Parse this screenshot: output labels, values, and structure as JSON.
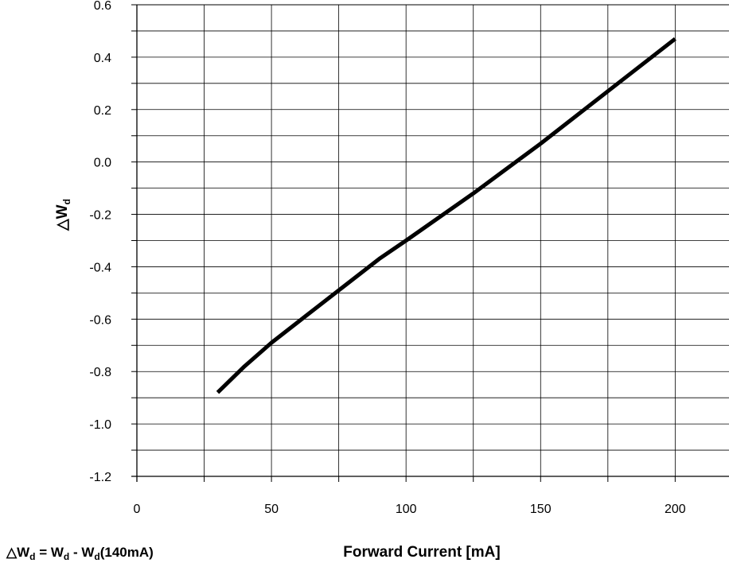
{
  "chart_data": {
    "type": "line",
    "xlabel": "Forward Current [mA]",
    "ylabel": {
      "symbol": "△W",
      "sub": "d"
    },
    "xlim": [
      0,
      220
    ],
    "ylim": [
      -1.2,
      0.6
    ],
    "x_ticks": [
      "0",
      "50",
      "100",
      "150",
      "200"
    ],
    "y_ticks": [
      "0.6",
      "0.4",
      "0.2",
      "0.0",
      "-0.2",
      "-0.4",
      "-0.6",
      "-0.8",
      "-1.0",
      "-1.2"
    ],
    "grid": true,
    "series": [
      {
        "x": [
          30,
          40,
          50,
          60,
          75,
          90,
          100,
          125,
          150,
          175,
          200
        ],
        "y": [
          -0.88,
          -0.78,
          -0.69,
          -0.61,
          -0.49,
          -0.37,
          -0.3,
          -0.12,
          0.07,
          0.27,
          0.47
        ],
        "color": "#000000"
      }
    ],
    "annotation": {
      "parts": [
        {
          "text": "△W",
          "sub": "d"
        },
        {
          "text": " = W",
          "sub": "d"
        },
        {
          "text": " - W",
          "sub": "d"
        },
        {
          "text": "(140mA)"
        }
      ]
    }
  }
}
